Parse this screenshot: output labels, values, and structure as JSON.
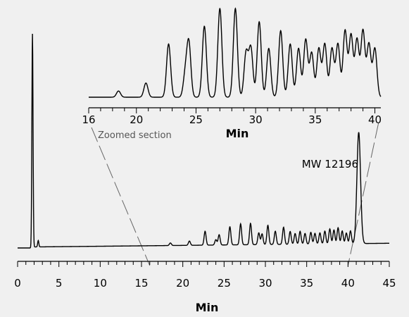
{
  "chart_data": [
    {
      "name": "main-chromatogram",
      "type": "line",
      "xlabel": "Min",
      "ylabel": "",
      "xlim": [
        0,
        45
      ],
      "xticks": [
        0,
        5,
        10,
        15,
        20,
        25,
        30,
        35,
        40,
        45
      ],
      "minor_tick_step": 1,
      "peaks": [
        [
          1.8,
          1.0
        ],
        [
          2.5,
          0.03
        ],
        [
          18.5,
          0.012
        ],
        [
          20.8,
          0.02
        ],
        [
          22.7,
          0.065
        ],
        [
          24.0,
          0.025
        ],
        [
          24.4,
          0.048
        ],
        [
          25.7,
          0.085
        ],
        [
          27.0,
          0.098
        ],
        [
          28.2,
          0.1
        ],
        [
          29.2,
          0.055
        ],
        [
          29.6,
          0.05
        ],
        [
          30.3,
          0.09
        ],
        [
          31.2,
          0.062
        ],
        [
          32.2,
          0.08
        ],
        [
          33.0,
          0.06
        ],
        [
          33.6,
          0.05
        ],
        [
          34.2,
          0.06
        ],
        [
          34.8,
          0.05
        ],
        [
          35.5,
          0.055
        ],
        [
          36.0,
          0.05
        ],
        [
          36.6,
          0.052
        ],
        [
          37.2,
          0.06
        ],
        [
          37.8,
          0.07
        ],
        [
          38.3,
          0.065
        ],
        [
          38.8,
          0.075
        ],
        [
          39.3,
          0.06
        ],
        [
          39.8,
          0.05
        ],
        [
          40.3,
          0.06
        ],
        [
          41.3,
          0.52
        ]
      ],
      "annotations": [
        {
          "text": "MW 12196",
          "x": 41.3
        }
      ]
    },
    {
      "name": "zoomed-inset",
      "type": "line",
      "xlabel": "Min",
      "xlim": [
        16,
        40.5
      ],
      "xticks": [
        16,
        20,
        25,
        30,
        35,
        40
      ],
      "minor_tick_step": 1,
      "label": "Zoomed section",
      "peaks": [
        [
          18.5,
          0.07
        ],
        [
          20.8,
          0.16
        ],
        [
          22.7,
          0.6
        ],
        [
          24.1,
          0.25
        ],
        [
          24.4,
          0.6
        ],
        [
          25.7,
          0.8
        ],
        [
          27.0,
          1.0
        ],
        [
          28.3,
          1.0
        ],
        [
          29.2,
          0.5
        ],
        [
          29.6,
          0.55
        ],
        [
          30.3,
          0.85
        ],
        [
          31.1,
          0.55
        ],
        [
          32.1,
          0.75
        ],
        [
          32.9,
          0.6
        ],
        [
          33.6,
          0.55
        ],
        [
          34.2,
          0.65
        ],
        [
          34.7,
          0.5
        ],
        [
          35.3,
          0.55
        ],
        [
          35.8,
          0.6
        ],
        [
          36.4,
          0.55
        ],
        [
          36.9,
          0.6
        ],
        [
          37.5,
          0.75
        ],
        [
          38.0,
          0.7
        ],
        [
          38.5,
          0.65
        ],
        [
          39.0,
          0.75
        ],
        [
          39.5,
          0.6
        ],
        [
          40.0,
          0.55
        ]
      ]
    }
  ]
}
